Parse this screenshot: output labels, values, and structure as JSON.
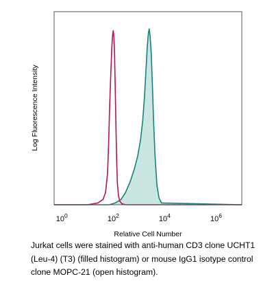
{
  "chart_data": {
    "type": "area",
    "xlabel": "Relative Cell Number",
    "ylabel": "Log Fluorescence Intensity",
    "x_scale": "log",
    "x_range": [
      0.5,
      10000000
    ],
    "y_range": [
      0,
      1
    ],
    "x_ticks": [
      {
        "value": 1,
        "base": "10",
        "exp": "0"
      },
      {
        "value": 100,
        "base": "10",
        "exp": "2"
      },
      {
        "value": 10000,
        "base": "10",
        "exp": "4"
      },
      {
        "value": 1000000,
        "base": "10",
        "exp": "6"
      }
    ],
    "series": [
      {
        "style": "open",
        "color": "#b0145a",
        "x": [
          0.5,
          10,
          25,
          40,
          50,
          60,
          66,
          72,
          80,
          88,
          95,
          100,
          106,
          112,
          120,
          128,
          136,
          145,
          160,
          180,
          220,
          300,
          10000000
        ],
        "y": [
          0,
          0,
          0.01,
          0.03,
          0.07,
          0.18,
          0.35,
          0.55,
          0.74,
          0.9,
          0.97,
          0.99,
          0.95,
          0.86,
          0.65,
          0.42,
          0.24,
          0.12,
          0.05,
          0.02,
          0.005,
          0,
          0
        ]
      },
      {
        "style": "filled",
        "color": "#17807a",
        "fill": "#c9e6e2",
        "x": [
          0.5,
          70,
          120,
          200,
          300,
          450,
          650,
          900,
          1150,
          1400,
          1650,
          1900,
          2100,
          2300,
          2500,
          2700,
          3000,
          3300,
          3700,
          4200,
          5000,
          6000,
          7500,
          10000000
        ],
        "y": [
          0,
          0,
          0.01,
          0.03,
          0.07,
          0.13,
          0.2,
          0.28,
          0.37,
          0.48,
          0.62,
          0.78,
          0.9,
          0.97,
          1.0,
          0.96,
          0.86,
          0.7,
          0.48,
          0.28,
          0.11,
          0.04,
          0.01,
          0
        ]
      }
    ]
  },
  "caption": "Jurkat cells were stained with anti-human CD3 clone UCHT1 (Leu-4) (T3) (filled histogram) or mouse IgG1 isotype control clone MOPC-21 (open histogram)."
}
